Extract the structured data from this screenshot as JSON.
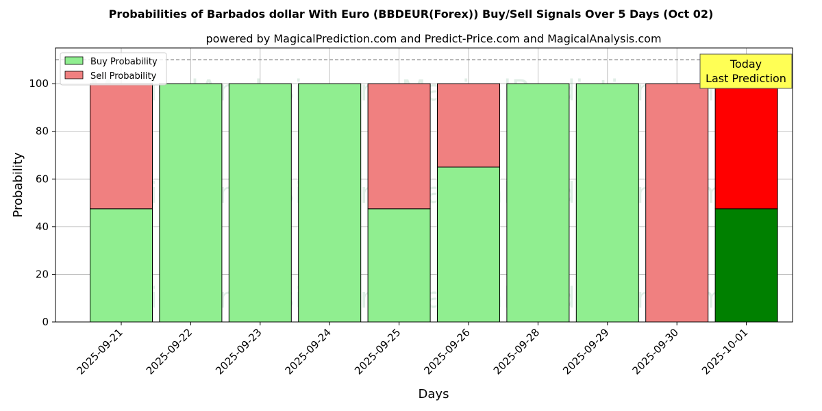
{
  "chart_data": {
    "type": "bar",
    "stacked": true,
    "title": "Probabilities of Barbados dollar With Euro (BBDEUR(Forex)) Buy/Sell Signals Over 5 Days (Oct 02)",
    "subtitle": "powered by MagicalPrediction.com and Predict-Price.com and MagicalAnalysis.com",
    "xlabel": "Days",
    "ylabel": "Probability",
    "ylim": [
      0,
      115
    ],
    "yticks": [
      0,
      20,
      40,
      60,
      80,
      100
    ],
    "grid": true,
    "legend_position": "top-left",
    "reference_line": 110,
    "categories": [
      "2025-09-21",
      "2025-09-22",
      "2025-09-23",
      "2025-09-24",
      "2025-09-25",
      "2025-09-26",
      "2025-09-28",
      "2025-09-29",
      "2025-09-30",
      "2025-10-01"
    ],
    "series": [
      {
        "name": "Buy Probability",
        "color": "#90ee90",
        "highlight_color": "#008000",
        "values": [
          47.5,
          100,
          100,
          100,
          47.5,
          65,
          100,
          100,
          0,
          47.5
        ]
      },
      {
        "name": "Sell Probability",
        "color": "#f08080",
        "highlight_color": "#ff0000",
        "values": [
          52.5,
          0,
          0,
          0,
          52.5,
          35,
          0,
          0,
          100,
          52.5
        ]
      }
    ],
    "highlight_index": 9,
    "annotation": {
      "lines": [
        "Today",
        "Last Prediction"
      ],
      "background": "#ffff55"
    },
    "watermarks": [
      "MagicalAnalysis.com",
      "MagicalPrediction.com"
    ]
  }
}
